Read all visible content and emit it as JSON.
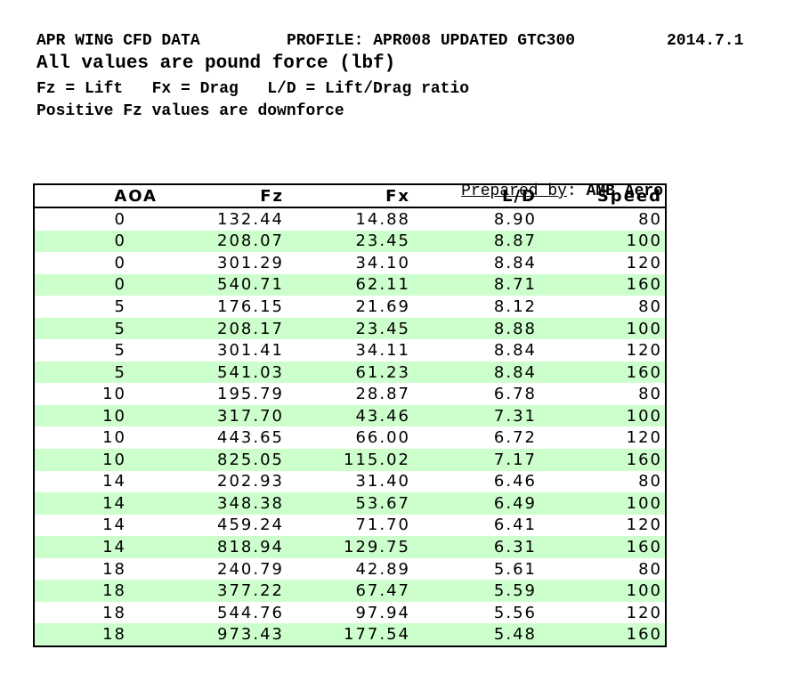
{
  "header": {
    "title": "APR WING CFD DATA",
    "profile": "PROFILE: APR008 UPDATED GTC300",
    "date": "2014.7.1",
    "subtitle": "All values are pound force (lbf)",
    "legend": "Fz = Lift   Fx = Drag   L/D = Lift/Drag ratio",
    "note": "Positive Fz values are downforce"
  },
  "prepared_by": {
    "label": "Prepared by",
    "separator": ": ",
    "value": "AMB Aero"
  },
  "colors": {
    "stripe": "#ccffcc",
    "border": "#000000"
  },
  "chart_data": {
    "type": "table",
    "columns": [
      "AOA",
      "Fz",
      "Fx",
      "L/D",
      "Speed"
    ],
    "rows": [
      [
        "0",
        "132.44",
        "14.88",
        "8.90",
        "80"
      ],
      [
        "0",
        "208.07",
        "23.45",
        "8.87",
        "100"
      ],
      [
        "0",
        "301.29",
        "34.10",
        "8.84",
        "120"
      ],
      [
        "0",
        "540.71",
        "62.11",
        "8.71",
        "160"
      ],
      [
        "5",
        "176.15",
        "21.69",
        "8.12",
        "80"
      ],
      [
        "5",
        "208.17",
        "23.45",
        "8.88",
        "100"
      ],
      [
        "5",
        "301.41",
        "34.11",
        "8.84",
        "120"
      ],
      [
        "5",
        "541.03",
        "61.23",
        "8.84",
        "160"
      ],
      [
        "10",
        "195.79",
        "28.87",
        "6.78",
        "80"
      ],
      [
        "10",
        "317.70",
        "43.46",
        "7.31",
        "100"
      ],
      [
        "10",
        "443.65",
        "66.00",
        "6.72",
        "120"
      ],
      [
        "10",
        "825.05",
        "115.02",
        "7.17",
        "160"
      ],
      [
        "14",
        "202.93",
        "31.40",
        "6.46",
        "80"
      ],
      [
        "14",
        "348.38",
        "53.67",
        "6.49",
        "100"
      ],
      [
        "14",
        "459.24",
        "71.70",
        "6.41",
        "120"
      ],
      [
        "14",
        "818.94",
        "129.75",
        "6.31",
        "160"
      ],
      [
        "18",
        "240.79",
        "42.89",
        "5.61",
        "80"
      ],
      [
        "18",
        "377.22",
        "67.47",
        "5.59",
        "100"
      ],
      [
        "18",
        "544.76",
        "97.94",
        "5.56",
        "120"
      ],
      [
        "18",
        "973.43",
        "177.54",
        "5.48",
        "160"
      ]
    ]
  }
}
